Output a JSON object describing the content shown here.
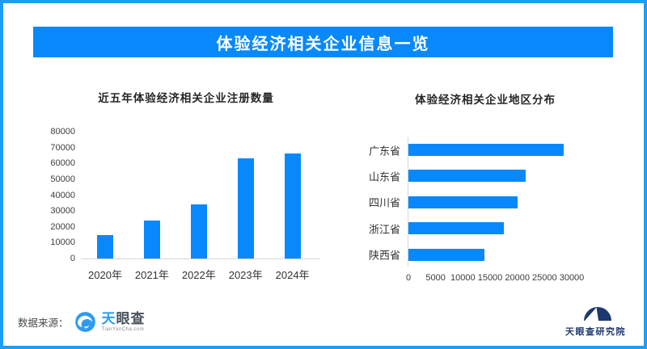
{
  "header": {
    "title": "体验经济相关企业信息一览"
  },
  "colors": {
    "primary_blue": "#0789fb",
    "border_blue": "#1b9ef5",
    "axis_line": "#d6d6d6",
    "title_text": "#262626",
    "tick_text": "#3c3c3c",
    "navy": "#1d3a6e",
    "tyc_icon_blue": "#2e9bf0"
  },
  "chart_data": [
    {
      "type": "bar",
      "title": "近五年体验经济相关企业注册数量",
      "categories": [
        "2020年",
        "2021年",
        "2022年",
        "2023年",
        "2024年"
      ],
      "values": [
        15000,
        24000,
        34000,
        63000,
        66500
      ],
      "xlabel": "",
      "ylabel": "",
      "ylim": [
        0,
        80000
      ],
      "yticks": [
        "80000",
        "70000",
        "60000",
        "50000",
        "40000",
        "30000",
        "20000",
        "10000",
        "0"
      ],
      "grid": false,
      "legend": "none",
      "bar_color": "#0789fb"
    },
    {
      "type": "bar-horizontal",
      "title": "体验经济相关企业地区分布",
      "categories": [
        "广东省",
        "山东省",
        "四川省",
        "浙江省",
        "陕西省"
      ],
      "values": [
        28500,
        21500,
        20000,
        17500,
        14000
      ],
      "xlabel": "",
      "ylabel": "",
      "xlim": [
        0,
        30000
      ],
      "xticks": [
        0,
        5000,
        10000,
        15000,
        20000,
        25000,
        30000
      ],
      "grid": false,
      "legend": "none",
      "bar_color": "#0789fb"
    }
  ],
  "footer": {
    "source_label": "数据来源：",
    "tianyancha": {
      "brand_first": "天",
      "brand_rest": "眼查",
      "domain": "TianYanCha.com"
    },
    "institute": {
      "name": "天眼查研究院"
    }
  }
}
